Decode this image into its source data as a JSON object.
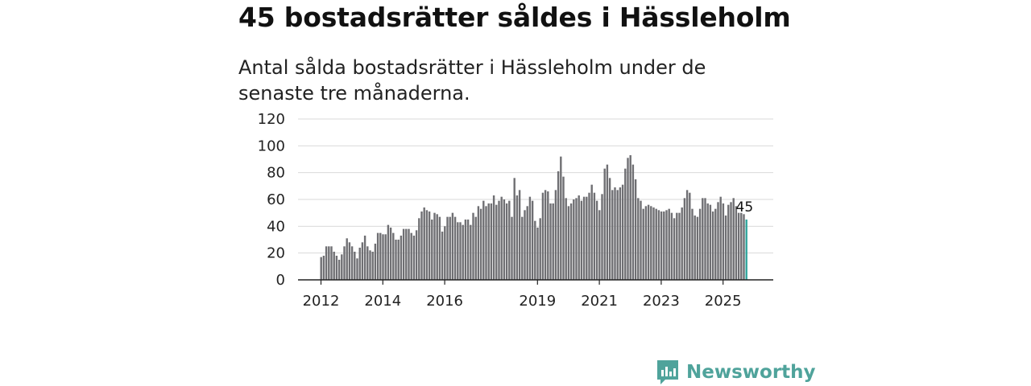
{
  "title": "45 bostadsrätter såldes i Hässleholm",
  "subtitle": "Antal sålda bostadsrätter i Hässleholm under de senaste tre månaderna.",
  "brand": {
    "name": "Newsworthy",
    "color": "#4fa39b"
  },
  "chart_data": {
    "type": "bar",
    "title": "45 bostadsrätter såldes i Hässleholm",
    "xlabel": "",
    "ylabel": "",
    "ylim": [
      0,
      120
    ],
    "yticks": [
      0,
      20,
      40,
      60,
      80,
      100,
      120
    ],
    "xticks": [
      {
        "label": "2012",
        "index": 0
      },
      {
        "label": "2014",
        "index": 24
      },
      {
        "label": "2016",
        "index": 48
      },
      {
        "label": "2019",
        "index": 84
      },
      {
        "label": "2021",
        "index": 108
      },
      {
        "label": "2023",
        "index": 132
      },
      {
        "label": "2025",
        "index": 156
      }
    ],
    "grid": true,
    "bar_color": "#6f6f73",
    "highlight_color": "#2fa59c",
    "highlight_label": "45",
    "start": "2012-01",
    "values": [
      17,
      18,
      25,
      25,
      25,
      21,
      18,
      15,
      19,
      25,
      31,
      28,
      25,
      21,
      16,
      24,
      28,
      33,
      25,
      22,
      21,
      27,
      35,
      35,
      34,
      34,
      41,
      39,
      35,
      30,
      30,
      33,
      38,
      38,
      38,
      35,
      33,
      37,
      46,
      51,
      54,
      52,
      51,
      45,
      50,
      49,
      47,
      36,
      40,
      47,
      47,
      50,
      47,
      43,
      43,
      41,
      45,
      45,
      41,
      50,
      47,
      55,
      53,
      59,
      55,
      57,
      57,
      63,
      56,
      59,
      62,
      60,
      57,
      59,
      47,
      76,
      63,
      67,
      47,
      52,
      55,
      62,
      59,
      44,
      39,
      46,
      65,
      67,
      66,
      57,
      57,
      67,
      81,
      92,
      77,
      61,
      55,
      57,
      60,
      61,
      63,
      59,
      62,
      62,
      65,
      71,
      65,
      59,
      52,
      64,
      83,
      86,
      76,
      67,
      69,
      67,
      69,
      71,
      83,
      91,
      93,
      86,
      75,
      61,
      59,
      53,
      55,
      56,
      55,
      54,
      53,
      52,
      51,
      51,
      52,
      53,
      50,
      46,
      50,
      50,
      54,
      61,
      67,
      65,
      53,
      48,
      47,
      53,
      61,
      61,
      57,
      56,
      51,
      53,
      58,
      62,
      57,
      48,
      56,
      58,
      61,
      55,
      50,
      50,
      49,
      45
    ],
    "series_note": "monthly values 2012-01 to 2025-10; last bar highlighted"
  }
}
